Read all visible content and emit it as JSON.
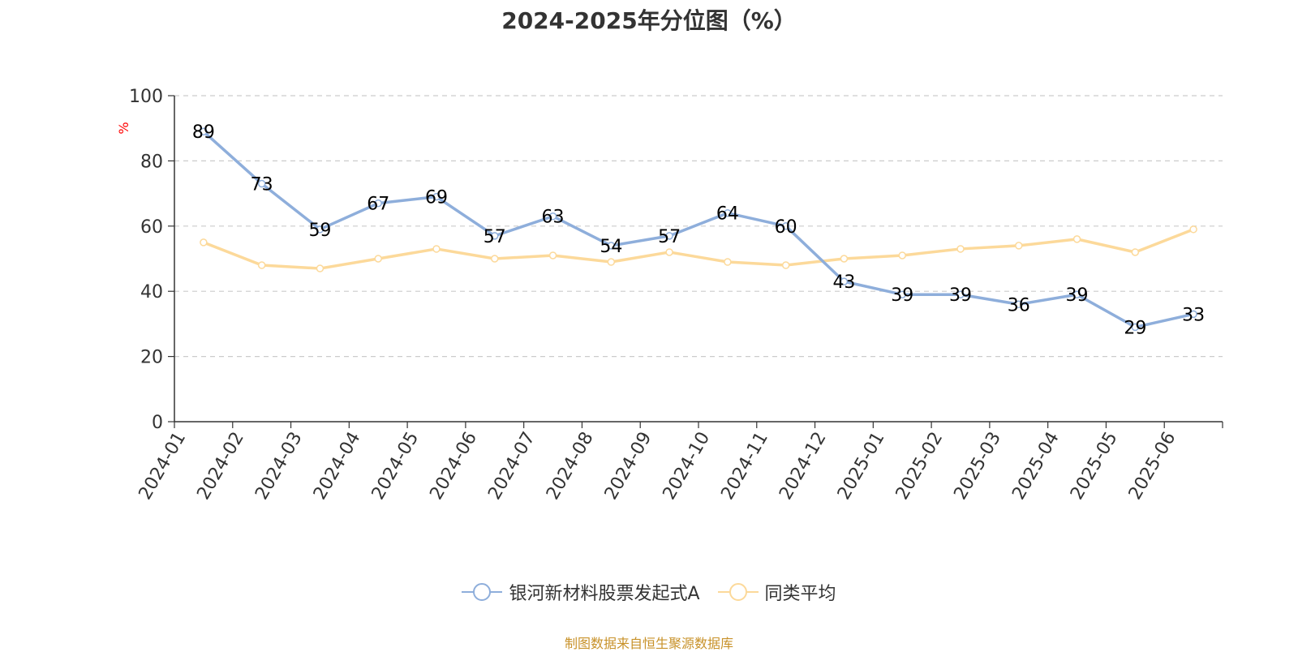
{
  "chart_data": {
    "type": "line",
    "title": "2024-2025年分位图（%）",
    "ylabel": "%",
    "xlabel": "",
    "ylim": [
      0,
      100
    ],
    "yticks": [
      0,
      20,
      40,
      60,
      80,
      100
    ],
    "grid": true,
    "legend_position": "bottom",
    "categories": [
      "2024-01",
      "2024-02",
      "2024-03",
      "2024-04",
      "2024-05",
      "2024-06",
      "2024-07",
      "2024-08",
      "2024-09",
      "2024-10",
      "2024-11",
      "2024-12",
      "2025-01",
      "2025-02",
      "2025-03",
      "2025-04",
      "2025-05",
      "2025-06"
    ],
    "series": [
      {
        "name": "银河新材料股票发起式A",
        "color": "#8eaedb",
        "show_labels": true,
        "values": [
          89,
          73,
          59,
          67,
          69,
          57,
          63,
          54,
          57,
          64,
          60,
          43,
          39,
          39,
          36,
          39,
          29,
          33
        ]
      },
      {
        "name": "同类平均",
        "color": "#fcd99a",
        "show_labels": false,
        "values": [
          55,
          48,
          47,
          50,
          53,
          50,
          51,
          49,
          52,
          49,
          48,
          50,
          51,
          53,
          54,
          56,
          52,
          59
        ]
      }
    ]
  },
  "source_note": "制图数据来自恒生聚源数据库",
  "colors": {
    "title": "#333333",
    "axis": "#333333",
    "grid": "#cccccc",
    "ylabel": "#ff0000",
    "source_note": "#c8922a"
  }
}
